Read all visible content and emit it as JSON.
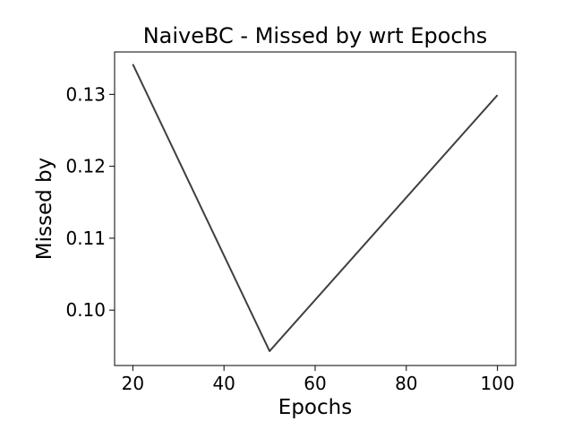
{
  "chart_data": {
    "type": "line",
    "title": "NaiveBC - Missed by wrt Epochs",
    "xlabel": "Epochs",
    "ylabel": "Missed by",
    "xlim": [
      16,
      104
    ],
    "ylim": [
      0.0923,
      0.1359
    ],
    "xticks": [
      20,
      40,
      60,
      80,
      100
    ],
    "xtick_labels": [
      "20",
      "40",
      "60",
      "80",
      "100"
    ],
    "yticks": [
      0.1,
      0.11,
      0.12,
      0.13
    ],
    "ytick_labels": [
      "0.10",
      "0.11",
      "0.12",
      "0.13"
    ],
    "grid": false,
    "series": [
      {
        "color": "#3f3f3f",
        "x": [
          20,
          50,
          100
        ],
        "y": [
          0.1342,
          0.0943,
          0.1299
        ]
      }
    ]
  }
}
